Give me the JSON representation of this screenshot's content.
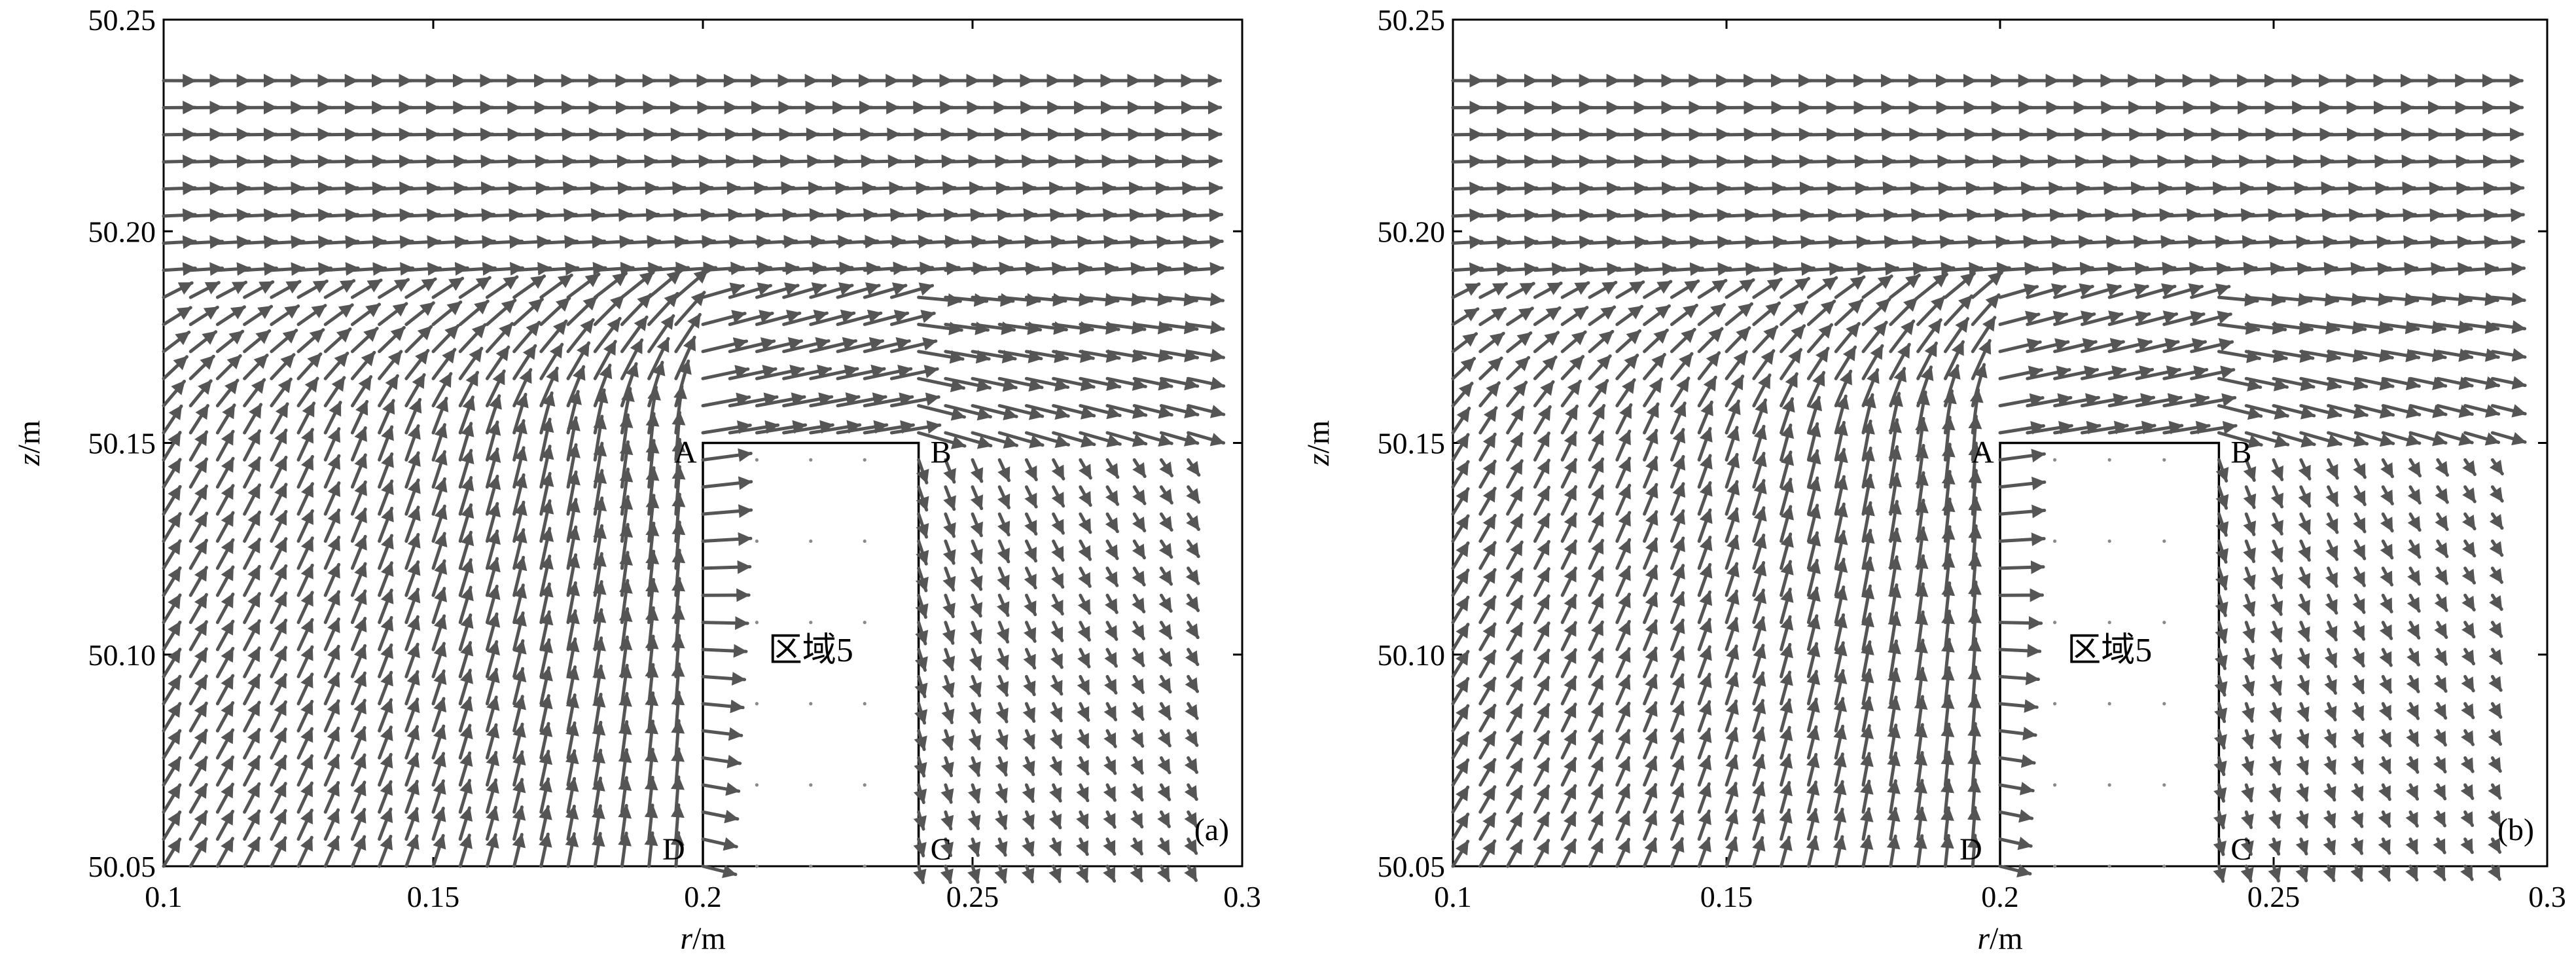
{
  "colors": {
    "arrow": "#555555",
    "frame": "#000000",
    "dot": "#8a8a8a",
    "background": "#ffffff"
  },
  "chart_data": [
    {
      "type": "quiver",
      "panel_label": "(a)",
      "xlabel_italic": "r",
      "xlabel_unit": "/m",
      "ylabel_italic": "z",
      "ylabel_unit": "/m",
      "xlim": [
        0.1,
        0.3
      ],
      "ylim": [
        50.05,
        50.25
      ],
      "x_ticks": [
        "0.1",
        "0.15",
        "0.2",
        "0.25",
        "0.3"
      ],
      "x_tick_values": [
        0.1,
        0.15,
        0.2,
        0.25,
        0.3
      ],
      "y_ticks": [
        "50.05",
        "50.10",
        "50.15",
        "50.20",
        "50.25"
      ],
      "y_tick_values": [
        50.05,
        50.1,
        50.15,
        50.2,
        50.25
      ],
      "grid": false,
      "region": {
        "label": "区域5",
        "r_min": 0.2,
        "r_max": 0.24,
        "z_min": 50.05,
        "z_max": 50.15
      },
      "corners": [
        {
          "label": "A",
          "r": 0.2,
          "z": 50.15
        },
        {
          "label": "B",
          "r": 0.24,
          "z": 50.15
        },
        {
          "label": "C",
          "r": 0.24,
          "z": 50.05
        },
        {
          "label": "D",
          "r": 0.2,
          "z": 50.05
        }
      ],
      "field": {
        "r_start": 0.1,
        "r_step": 0.005,
        "r_count": 40,
        "z_start": 50.05,
        "z_step": 0.0064,
        "z_count": 30
      }
    },
    {
      "type": "quiver",
      "panel_label": "(b)",
      "xlabel_italic": "r",
      "xlabel_unit": "/m",
      "ylabel_italic": "z",
      "ylabel_unit": "/m",
      "xlim": [
        0.1,
        0.3
      ],
      "ylim": [
        50.05,
        50.25
      ],
      "x_ticks": [
        "0.1",
        "0.15",
        "0.2",
        "0.25",
        "0.3"
      ],
      "x_tick_values": [
        0.1,
        0.15,
        0.2,
        0.25,
        0.3
      ],
      "y_ticks": [
        "50.05",
        "50.10",
        "50.15",
        "50.20",
        "50.25"
      ],
      "y_tick_values": [
        50.05,
        50.1,
        50.15,
        50.2,
        50.25
      ],
      "grid": false,
      "region": {
        "label": "区域5",
        "r_min": 0.2,
        "r_max": 0.24,
        "z_min": 50.05,
        "z_max": 50.15
      },
      "corners": [
        {
          "label": "A",
          "r": 0.2,
          "z": 50.15
        },
        {
          "label": "B",
          "r": 0.24,
          "z": 50.15
        },
        {
          "label": "C",
          "r": 0.24,
          "z": 50.05
        },
        {
          "label": "D",
          "r": 0.2,
          "z": 50.05
        }
      ],
      "field": {
        "r_start": 0.1,
        "r_step": 0.005,
        "r_count": 40,
        "z_start": 50.05,
        "z_step": 0.0064,
        "z_count": 30
      }
    }
  ]
}
